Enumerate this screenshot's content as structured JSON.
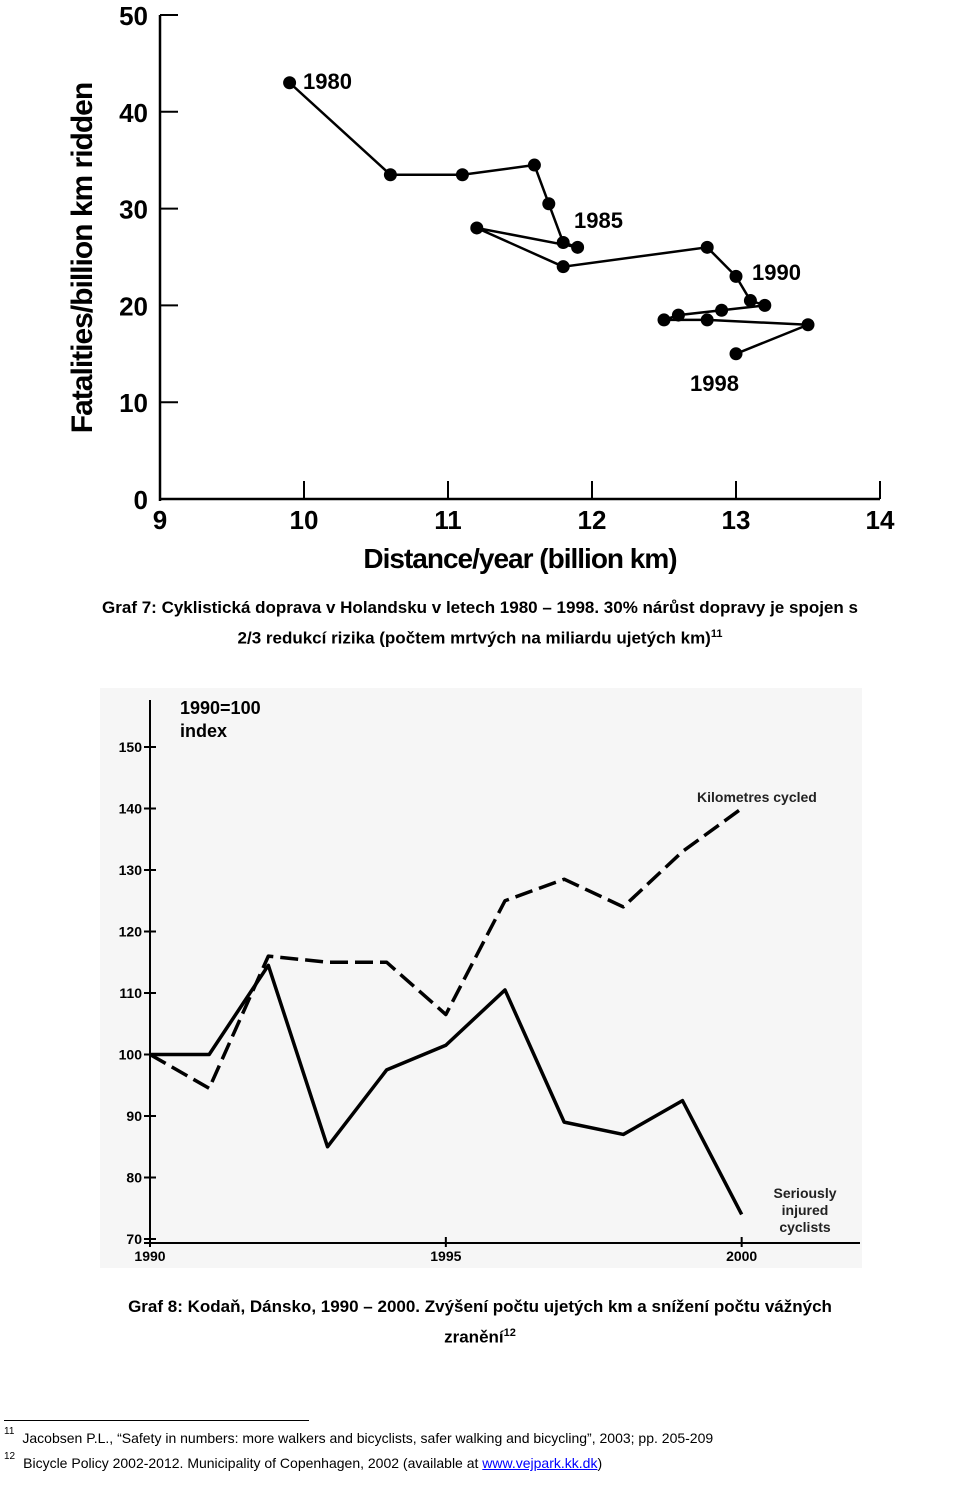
{
  "chart_data": [
    {
      "type": "line",
      "title": "",
      "xlabel": "Distance/year (billion km)",
      "ylabel": "Fatalities/billion km ridden",
      "xlim": [
        9,
        14
      ],
      "ylim": [
        0,
        50
      ],
      "x_ticks": [
        "9",
        "10",
        "11",
        "12",
        "13",
        "14"
      ],
      "y_ticks": [
        "0",
        "10",
        "20",
        "30",
        "40",
        "50"
      ],
      "grid": false,
      "series": [
        {
          "x": [
            9.9,
            10.6,
            11.1,
            11.6,
            11.7,
            11.8,
            11.9,
            11.2,
            11.8,
            12.8,
            13.0,
            13.1,
            13.2,
            12.9,
            12.6,
            12.5,
            12.8,
            13.5,
            13.0
          ],
          "y": [
            43,
            33.5,
            33.5,
            34.5,
            30.5,
            26.5,
            26,
            28,
            24,
            26,
            23,
            20.5,
            20,
            19.5,
            19,
            18.5,
            18.5,
            18,
            15
          ]
        }
      ],
      "annotations": [
        {
          "text": "1980",
          "x": 10.0,
          "y": 43.5
        },
        {
          "text": "1985",
          "x": 11.95,
          "y": 28
        },
        {
          "text": "1990",
          "x": 13.1,
          "y": 23.3
        },
        {
          "text": "1998",
          "x": 12.7,
          "y": 11.6
        }
      ]
    },
    {
      "type": "line",
      "title": "",
      "xlabel": "",
      "ylabel": "1990=100 index",
      "xlim": [
        1990,
        2002
      ],
      "ylim": [
        70,
        150
      ],
      "x_ticks": [
        "1990",
        "1995",
        "2000"
      ],
      "y_ticks": [
        "70",
        "80",
        "90",
        "100",
        "110",
        "120",
        "130",
        "140",
        "150"
      ],
      "grid": false,
      "series": [
        {
          "name": "Kilometres cycled",
          "style": "dashed",
          "x": [
            1990,
            1991,
            1992,
            1993,
            1994,
            1995,
            1996,
            1997,
            1998,
            1999,
            2000
          ],
          "y": [
            100,
            94.5,
            116,
            115,
            115,
            106.5,
            125,
            128.5,
            124,
            133,
            140
          ]
        },
        {
          "name": "Seriously injured cyclists",
          "style": "solid",
          "x": [
            1990,
            1991,
            1992,
            1993,
            1994,
            1995,
            1996,
            1997,
            1998,
            1999,
            2000
          ],
          "y": [
            100,
            100,
            114.5,
            85,
            97.5,
            101.5,
            110.5,
            89,
            87,
            92.5,
            74
          ]
        }
      ]
    }
  ],
  "chart1_labels": {
    "year_1980": "1980",
    "year_1985": "1985",
    "year_1990": "1990",
    "year_1998": "1998"
  },
  "chart2_labels": {
    "index_line1": "1990=100",
    "index_line2": "index",
    "km_cycled": "Kilometres cycled",
    "injured_line1": "Seriously",
    "injured_line2": "injured",
    "injured_line3": "cyclists"
  },
  "captions": {
    "graf7_line1": "Graf 7: Cyklistická doprava v Holandsku v letech 1980 – 1998. 30% nárůst dopravy je spojen s",
    "graf7_line2": "2/3 redukcí rizika (počtem mrtvých na miliardu ujetých km)",
    "graf7_ref": "11",
    "graf8_line1": "Graf 8: Kodaň, Dánsko, 1990 – 2000. Zvýšení počtu ujetých km a snížení počtu vážných",
    "graf8_line2": "zranění",
    "graf8_ref": "12"
  },
  "footnotes": {
    "fn11_num": "11",
    "fn11_text": "Jacobsen P.L., “Safety in numbers: more walkers and bicyclists, safer walking and bicycling”, 2003; pp. 205-209",
    "fn12_num": "12",
    "fn12_text": "Bicycle Policy 2002-2012. Municipality of Copenhagen, 2002 (available at ",
    "fn12_link": "www.vejpark.kk.dk",
    "fn12_tail": ")"
  }
}
